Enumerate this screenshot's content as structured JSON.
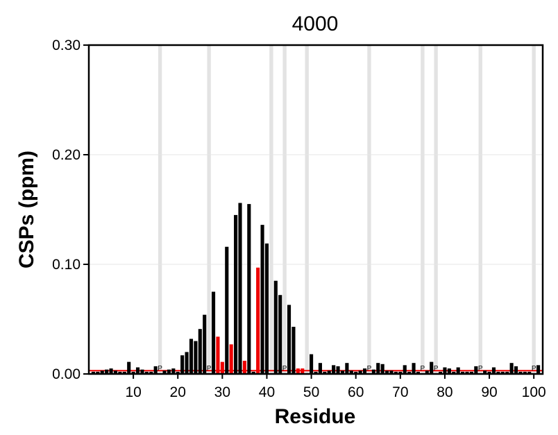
{
  "chart_data": {
    "type": "bar",
    "title": "4000",
    "xlabel": "Residue",
    "ylabel": "CSPs (ppm)",
    "xlim": [
      0,
      102
    ],
    "ylim": [
      0,
      0.3
    ],
    "x_ticks": [
      10,
      20,
      30,
      40,
      50,
      60,
      70,
      80,
      90,
      100
    ],
    "x_tick_labels": [
      "10",
      "20",
      "30",
      "40",
      "50",
      "60",
      "70",
      "80",
      "90",
      "100"
    ],
    "y_ticks": [
      0,
      0.1,
      0.2,
      0.3
    ],
    "y_tick_labels": [
      "0.00",
      "0.10",
      "0.20",
      "0.30"
    ],
    "grid": "horizontal",
    "colors": {
      "black_bar": "#000000",
      "red_bar": "#ee0000",
      "threshold": "#ee0000",
      "shade": "#e3e3e3",
      "gridline": "#e6e6e6"
    },
    "threshold": 0.003,
    "proline_label": "P",
    "proline_residues": [
      16,
      27,
      44,
      63,
      75,
      78,
      88,
      100
    ],
    "shaded_residues": [
      16,
      27,
      41,
      44,
      49,
      63,
      75,
      78,
      88,
      100
    ],
    "residues": [
      1,
      2,
      3,
      4,
      5,
      6,
      7,
      8,
      9,
      10,
      11,
      12,
      13,
      14,
      15,
      17,
      18,
      19,
      20,
      21,
      22,
      23,
      24,
      25,
      26,
      28,
      29,
      30,
      31,
      32,
      33,
      34,
      35,
      36,
      37,
      38,
      39,
      40,
      42,
      43,
      45,
      46,
      47,
      48,
      50,
      51,
      52,
      53,
      54,
      55,
      56,
      57,
      58,
      59,
      60,
      61,
      62,
      64,
      65,
      66,
      67,
      68,
      69,
      70,
      71,
      72,
      73,
      74,
      76,
      77,
      79,
      80,
      81,
      82,
      83,
      84,
      85,
      86,
      87,
      89,
      90,
      91,
      92,
      93,
      94,
      95,
      96,
      97,
      98,
      99,
      101
    ],
    "values": [
      0.002,
      0.002,
      0.003,
      0.004,
      0.005,
      0.003,
      0.002,
      0.002,
      0.011,
      0.002,
      0.006,
      0.004,
      0.002,
      0.002,
      0.007,
      0.003,
      0.004,
      0.005,
      0.002,
      0.017,
      0.02,
      0.032,
      0.03,
      0.041,
      0.054,
      0.075,
      0.034,
      0.011,
      0.116,
      0.027,
      0.145,
      0.156,
      0.012,
      0.155,
      0.002,
      0.097,
      0.136,
      0.119,
      0.085,
      0.072,
      0.063,
      0.043,
      0.005,
      0.005,
      0.018,
      0.002,
      0.01,
      0.002,
      0.003,
      0.008,
      0.007,
      0.003,
      0.01,
      0.003,
      0.002,
      0.003,
      0.005,
      0.004,
      0.01,
      0.009,
      0.003,
      0.003,
      0.002,
      0.002,
      0.008,
      0.002,
      0.01,
      0.002,
      0.003,
      0.011,
      0.002,
      0.006,
      0.005,
      0.002,
      0.006,
      0.002,
      0.002,
      0.002,
      0.007,
      0.003,
      0.002,
      0.006,
      0.002,
      0.002,
      0.002,
      0.01,
      0.007,
      0.002,
      0.002,
      0.002,
      0.008
    ],
    "bar_colors": [
      "k",
      "k",
      "k",
      "k",
      "k",
      "k",
      "k",
      "k",
      "k",
      "k",
      "k",
      "k",
      "k",
      "k",
      "k",
      "k",
      "k",
      "k",
      "k",
      "k",
      "k",
      "k",
      "k",
      "k",
      "k",
      "k",
      "r",
      "r",
      "k",
      "r",
      "k",
      "k",
      "r",
      "k",
      "k",
      "r",
      "k",
      "k",
      "k",
      "k",
      "k",
      "k",
      "r",
      "r",
      "k",
      "k",
      "k",
      "k",
      "k",
      "k",
      "k",
      "k",
      "k",
      "k",
      "k",
      "k",
      "k",
      "k",
      "k",
      "k",
      "k",
      "k",
      "k",
      "k",
      "k",
      "k",
      "k",
      "k",
      "k",
      "k",
      "k",
      "k",
      "k",
      "k",
      "k",
      "k",
      "k",
      "k",
      "k",
      "k",
      "k",
      "k",
      "k",
      "k",
      "k",
      "k",
      "k",
      "k",
      "k",
      "k",
      "k"
    ]
  }
}
